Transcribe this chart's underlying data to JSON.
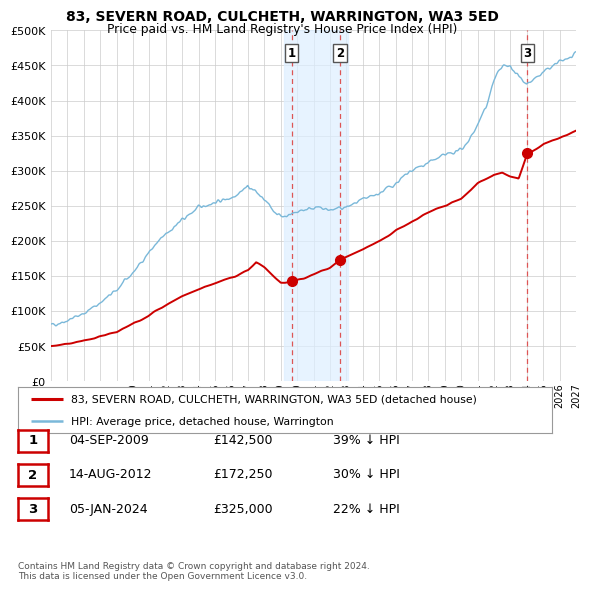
{
  "title": "83, SEVERN ROAD, CULCHETH, WARRINGTON, WA3 5ED",
  "subtitle": "Price paid vs. HM Land Registry's House Price Index (HPI)",
  "ylim": [
    0,
    500000
  ],
  "yticks": [
    0,
    50000,
    100000,
    150000,
    200000,
    250000,
    300000,
    350000,
    400000,
    450000,
    500000
  ],
  "ytick_labels": [
    "£0",
    "£50K",
    "£100K",
    "£150K",
    "£200K",
    "£250K",
    "£300K",
    "£350K",
    "£400K",
    "£450K",
    "£500K"
  ],
  "hpi_color": "#7ab8d9",
  "price_paid_color": "#cc0000",
  "background_color": "#ffffff",
  "grid_color": "#cccccc",
  "transactions": [
    {
      "label": "1",
      "date_x": 2009.67,
      "price": 142500
    },
    {
      "label": "2",
      "date_x": 2012.62,
      "price": 172250
    },
    {
      "label": "3",
      "date_x": 2024.02,
      "price": 325000
    }
  ],
  "shade_x1": 2009.17,
  "shade_x2": 2013.12,
  "transaction_shade_color": "#ddeeff",
  "transaction_shade_alpha": 0.7,
  "legend_entries": [
    "83, SEVERN ROAD, CULCHETH, WARRINGTON, WA3 5ED (detached house)",
    "HPI: Average price, detached house, Warrington"
  ],
  "footer_lines": [
    "Contains HM Land Registry data © Crown copyright and database right 2024.",
    "This data is licensed under the Open Government Licence v3.0."
  ],
  "table_rows": [
    [
      "1",
      "04-SEP-2009",
      "£142,500",
      "39% ↓ HPI"
    ],
    [
      "2",
      "14-AUG-2012",
      "£172,250",
      "30% ↓ HPI"
    ],
    [
      "3",
      "05-JAN-2024",
      "£325,000",
      "22% ↓ HPI"
    ]
  ],
  "xtick_years": [
    1995,
    1996,
    1997,
    1998,
    1999,
    2000,
    2001,
    2002,
    2003,
    2004,
    2005,
    2006,
    2007,
    2008,
    2009,
    2010,
    2011,
    2012,
    2013,
    2014,
    2015,
    2016,
    2017,
    2018,
    2019,
    2020,
    2021,
    2022,
    2023,
    2024,
    2025,
    2026,
    2027
  ]
}
